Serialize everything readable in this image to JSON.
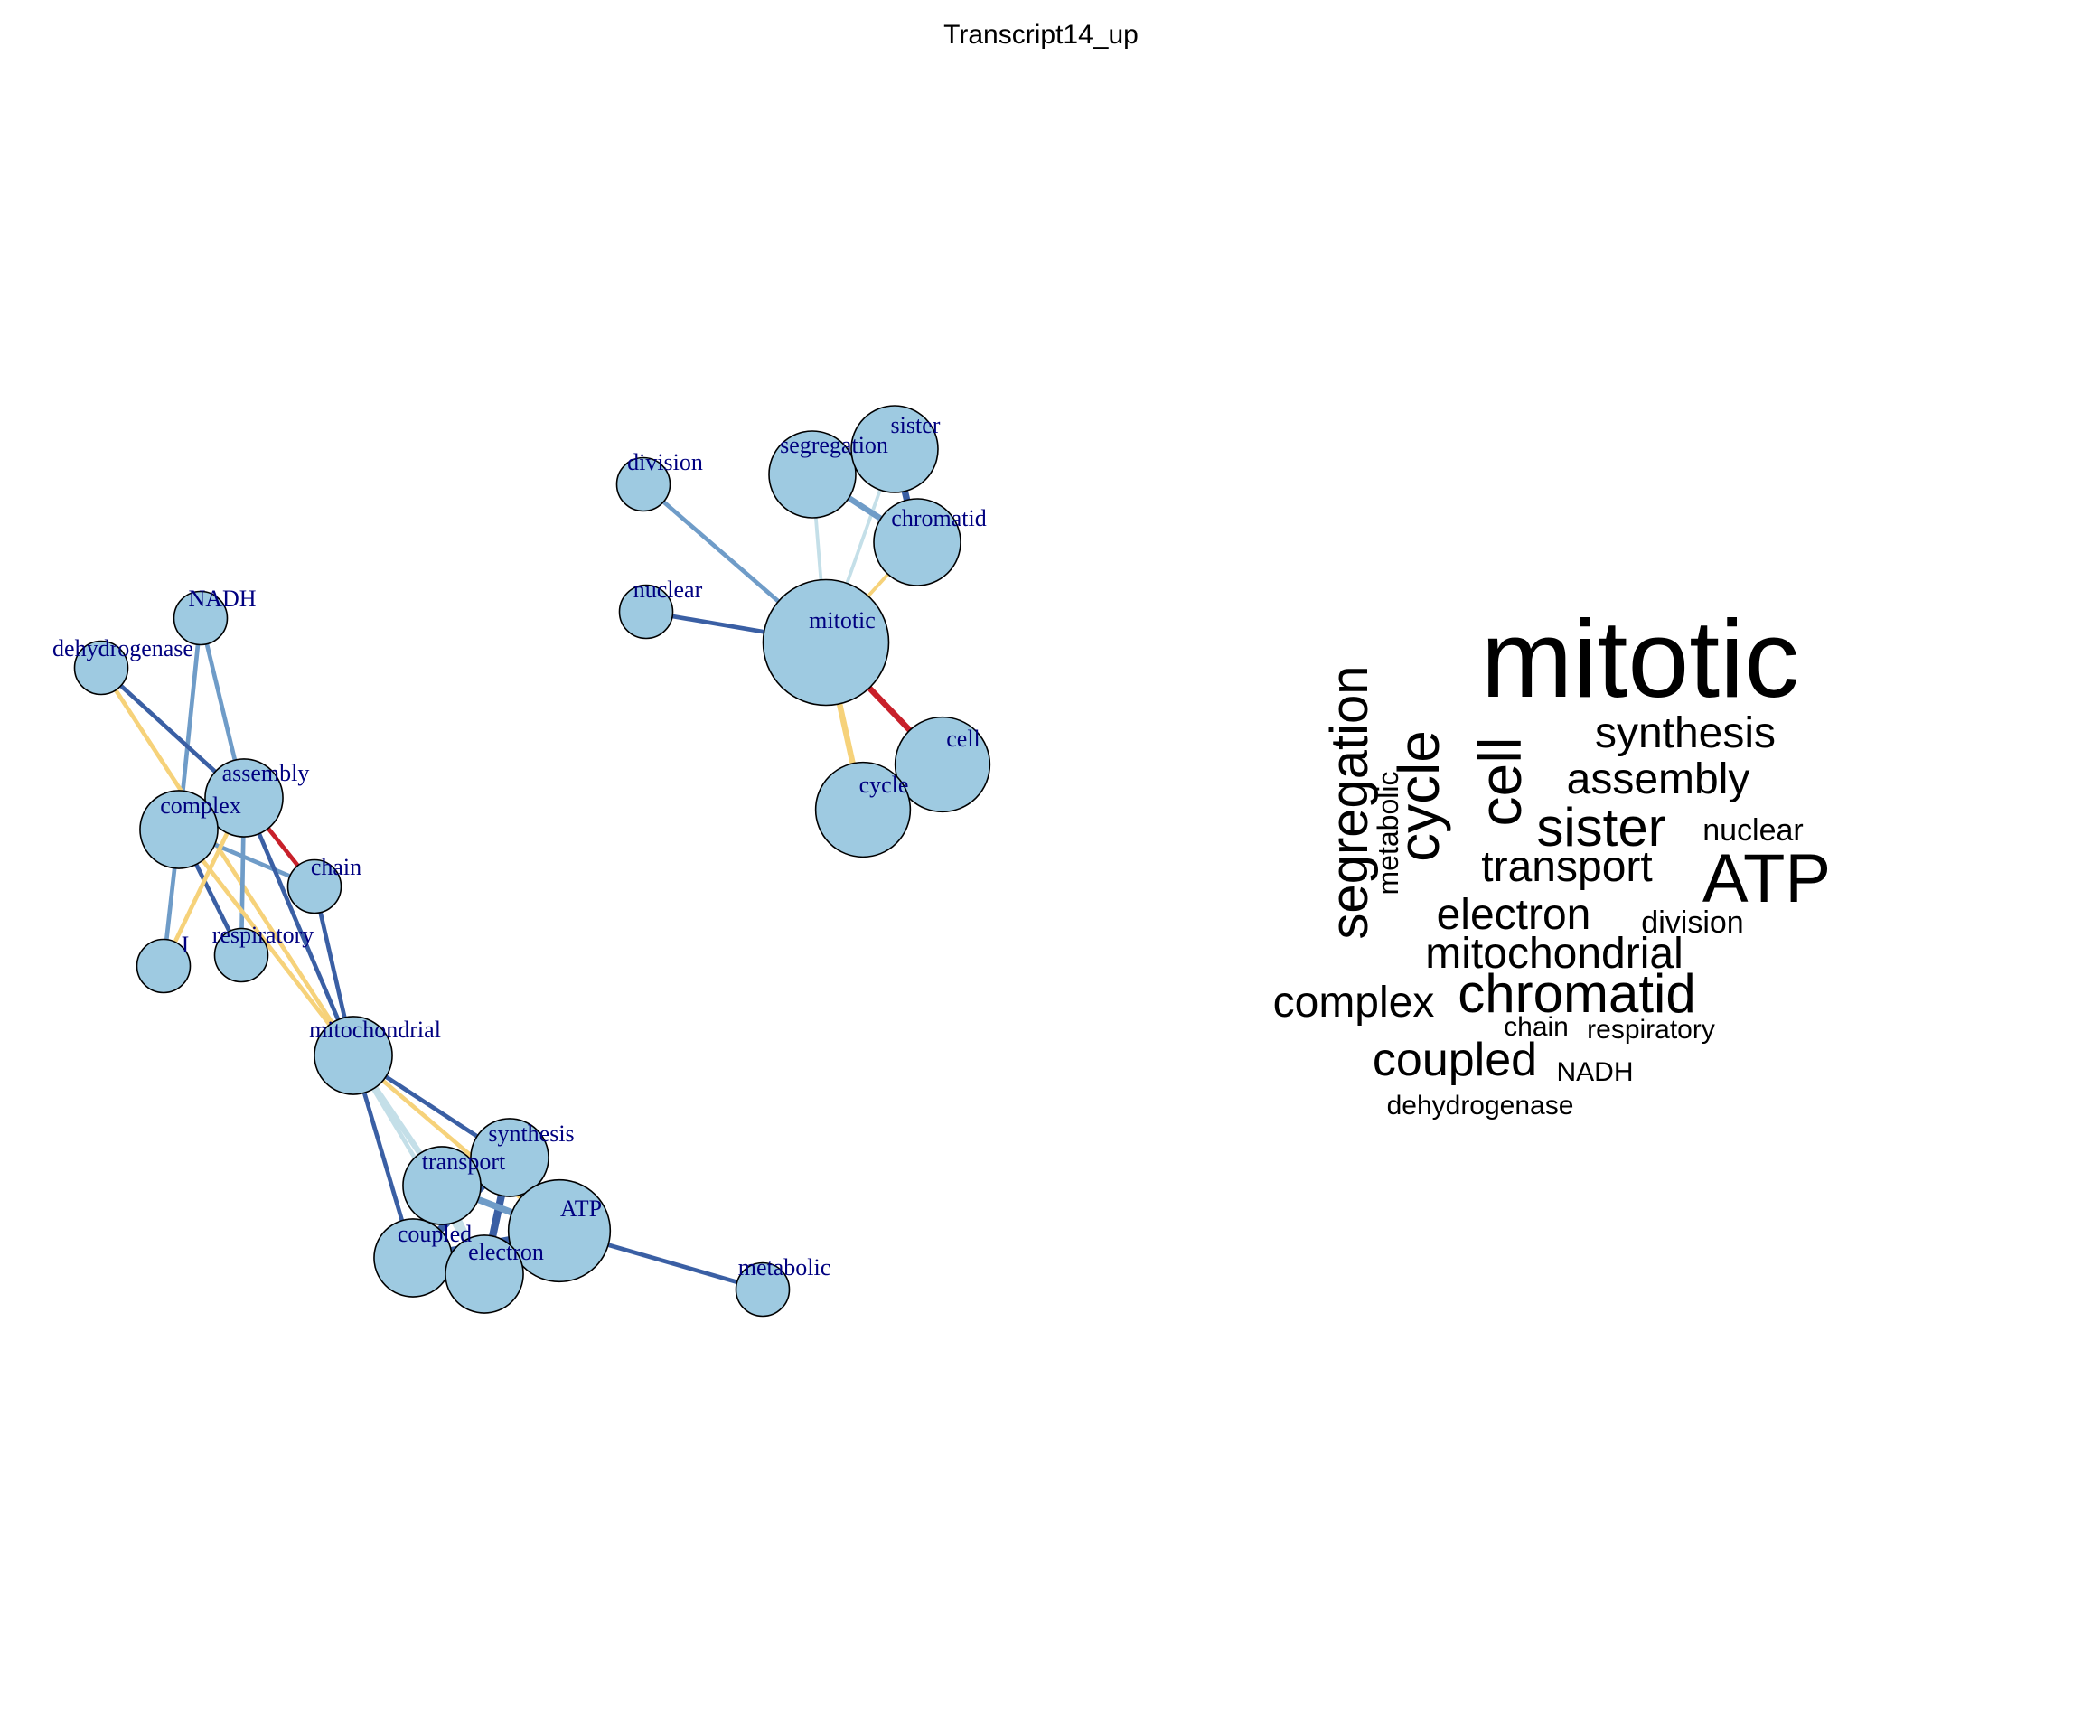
{
  "title": "Transcript14_up",
  "colors": {
    "node_fill": "#9ecae1",
    "label": "#000080",
    "edge_dark_blue": "#3a5fa4",
    "edge_mid_blue": "#6f9cc8",
    "edge_light_blue": "#c4dfe8",
    "edge_yellow": "#f6d27a",
    "edge_red": "#c8202a"
  },
  "network": {
    "nodes": [
      {
        "id": "mitotic",
        "label": "mitotic",
        "weight": 10
      },
      {
        "id": "cell",
        "label": "cell",
        "weight": 5
      },
      {
        "id": "cycle",
        "label": "cycle",
        "weight": 5
      },
      {
        "id": "segregation",
        "label": "segregation",
        "weight": 4
      },
      {
        "id": "sister",
        "label": "sister",
        "weight": 4
      },
      {
        "id": "chromatid",
        "label": "chromatid",
        "weight": 4
      },
      {
        "id": "division",
        "label": "division",
        "weight": 1
      },
      {
        "id": "nuclear",
        "label": "nuclear",
        "weight": 1
      },
      {
        "id": "NADH",
        "label": "NADH",
        "weight": 1
      },
      {
        "id": "dehydrogenase",
        "label": "dehydrogenase",
        "weight": 1
      },
      {
        "id": "assembly",
        "label": "assembly",
        "weight": 3
      },
      {
        "id": "complex",
        "label": "complex",
        "weight": 3
      },
      {
        "id": "chain",
        "label": "chain",
        "weight": 1
      },
      {
        "id": "respiratory",
        "label": "respiratory",
        "weight": 1
      },
      {
        "id": "I",
        "label": "I",
        "weight": 1
      },
      {
        "id": "mitochondrial",
        "label": "mitochondrial",
        "weight": 3
      },
      {
        "id": "synthesis",
        "label": "synthesis",
        "weight": 3
      },
      {
        "id": "transport",
        "label": "transport",
        "weight": 3
      },
      {
        "id": "ATP",
        "label": "ATP",
        "weight": 6
      },
      {
        "id": "coupled",
        "label": "coupled",
        "weight": 3
      },
      {
        "id": "electron",
        "label": "electron",
        "weight": 3
      },
      {
        "id": "metabolic",
        "label": "metabolic",
        "weight": 1
      }
    ],
    "edges": [
      {
        "source": "mitotic",
        "target": "cell",
        "color": "red",
        "strength": 5
      },
      {
        "source": "mitotic",
        "target": "cycle",
        "color": "yellow",
        "strength": 5
      },
      {
        "source": "mitotic",
        "target": "division",
        "color": "mid_blue",
        "strength": 3
      },
      {
        "source": "mitotic",
        "target": "nuclear",
        "color": "dark_blue",
        "strength": 3
      },
      {
        "source": "mitotic",
        "target": "segregation",
        "color": "light_blue",
        "strength": 2
      },
      {
        "source": "mitotic",
        "target": "sister",
        "color": "light_blue",
        "strength": 2
      },
      {
        "source": "mitotic",
        "target": "chromatid",
        "color": "yellow",
        "strength": 2
      },
      {
        "source": "cell",
        "target": "cycle",
        "color": "dark_blue",
        "strength": 1
      },
      {
        "source": "segregation",
        "target": "chromatid",
        "color": "mid_blue",
        "strength": 5
      },
      {
        "source": "segregation",
        "target": "sister",
        "color": "dark_blue",
        "strength": 2
      },
      {
        "source": "sister",
        "target": "chromatid",
        "color": "dark_blue",
        "strength": 6
      },
      {
        "source": "NADH",
        "target": "complex",
        "color": "mid_blue",
        "strength": 3
      },
      {
        "source": "NADH",
        "target": "assembly",
        "color": "mid_blue",
        "strength": 3
      },
      {
        "source": "dehydrogenase",
        "target": "assembly",
        "color": "dark_blue",
        "strength": 3
      },
      {
        "source": "dehydrogenase",
        "target": "mitochondrial",
        "color": "yellow",
        "strength": 3
      },
      {
        "source": "complex",
        "target": "assembly",
        "color": "dark_blue",
        "strength": 7
      },
      {
        "source": "assembly",
        "target": "chain",
        "color": "red",
        "strength": 3
      },
      {
        "source": "complex",
        "target": "chain",
        "color": "mid_blue",
        "strength": 3
      },
      {
        "source": "complex",
        "target": "I",
        "color": "mid_blue",
        "strength": 3
      },
      {
        "source": "complex",
        "target": "respiratory",
        "color": "dark_blue",
        "strength": 3
      },
      {
        "source": "assembly",
        "target": "respiratory",
        "color": "mid_blue",
        "strength": 3
      },
      {
        "source": "assembly",
        "target": "I",
        "color": "yellow",
        "strength": 3
      },
      {
        "source": "assembly",
        "target": "mitochondrial",
        "color": "dark_blue",
        "strength": 3
      },
      {
        "source": "complex",
        "target": "mitochondrial",
        "color": "yellow",
        "strength": 3
      },
      {
        "source": "chain",
        "target": "mitochondrial",
        "color": "dark_blue",
        "strength": 3
      },
      {
        "source": "mitochondrial",
        "target": "synthesis",
        "color": "dark_blue",
        "strength": 3
      },
      {
        "source": "mitochondrial",
        "target": "ATP",
        "color": "yellow",
        "strength": 3
      },
      {
        "source": "mitochondrial",
        "target": "transport",
        "color": "light_blue",
        "strength": 5
      },
      {
        "source": "mitochondrial",
        "target": "electron",
        "color": "light_blue",
        "strength": 3
      },
      {
        "source": "mitochondrial",
        "target": "coupled",
        "color": "dark_blue",
        "strength": 3
      },
      {
        "source": "synthesis",
        "target": "ATP",
        "color": "yellow",
        "strength": 6
      },
      {
        "source": "synthesis",
        "target": "transport",
        "color": "dark_blue",
        "strength": 3
      },
      {
        "source": "synthesis",
        "target": "coupled",
        "color": "dark_blue",
        "strength": 7
      },
      {
        "source": "synthesis",
        "target": "electron",
        "color": "dark_blue",
        "strength": 7
      },
      {
        "source": "transport",
        "target": "ATP",
        "color": "mid_blue",
        "strength": 6
      },
      {
        "source": "transport",
        "target": "coupled",
        "color": "dark_blue",
        "strength": 7
      },
      {
        "source": "transport",
        "target": "electron",
        "color": "light_blue",
        "strength": 6
      },
      {
        "source": "coupled",
        "target": "ATP",
        "color": "dark_blue",
        "strength": 7
      },
      {
        "source": "coupled",
        "target": "electron",
        "color": "mid_blue",
        "strength": 6
      },
      {
        "source": "electron",
        "target": "ATP",
        "color": "red",
        "strength": 5
      },
      {
        "source": "ATP",
        "target": "metabolic",
        "color": "dark_blue",
        "strength": 3
      }
    ]
  },
  "wordcloud": [
    {
      "text": "mitotic",
      "rank": 1
    },
    {
      "text": "segregation",
      "rank": 3
    },
    {
      "text": "metabolic",
      "rank": 8
    },
    {
      "text": "cycle",
      "rank": 2
    },
    {
      "text": "cell",
      "rank": 2
    },
    {
      "text": "synthesis",
      "rank": 4
    },
    {
      "text": "assembly",
      "rank": 4
    },
    {
      "text": "sister",
      "rank": 3
    },
    {
      "text": "nuclear",
      "rank": 6
    },
    {
      "text": "ATP",
      "rank": 2
    },
    {
      "text": "transport",
      "rank": 4
    },
    {
      "text": "electron",
      "rank": 4
    },
    {
      "text": "division",
      "rank": 6
    },
    {
      "text": "mitochondrial",
      "rank": 4
    },
    {
      "text": "complex",
      "rank": 4
    },
    {
      "text": "chromatid",
      "rank": 3
    },
    {
      "text": "chain",
      "rank": 7
    },
    {
      "text": "respiratory",
      "rank": 7
    },
    {
      "text": "coupled",
      "rank": 4
    },
    {
      "text": "NADH",
      "rank": 7
    },
    {
      "text": "dehydrogenase",
      "rank": 7
    }
  ]
}
